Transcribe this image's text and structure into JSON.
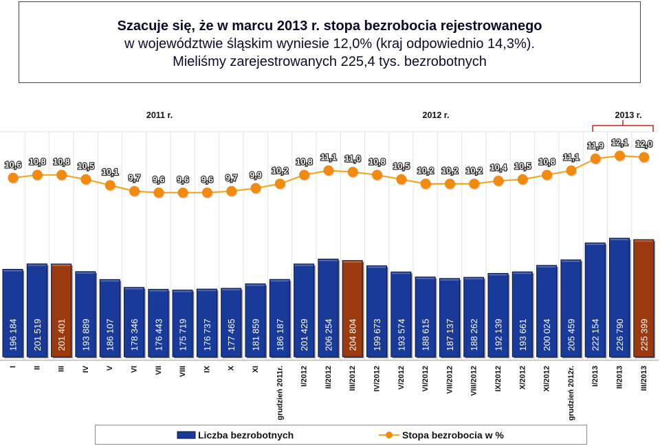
{
  "title": {
    "line1": "Szacuje się, że w marcu 2013 r. stopa bezrobocia rejestrowanego",
    "line2": "w województwie śląskim wyniesie 12,0% (kraj odpowiednio 14,3%).",
    "line3": "Mieliśmy zarejestrowanych 225,4 tys. bezrobotnych"
  },
  "year_labels": [
    "2011 r.",
    "2012 r.",
    "2013 r."
  ],
  "legend": {
    "bars_label": "Liczba bezrobotnych",
    "line_label": "Stopa bezrobocia w %"
  },
  "colors": {
    "bar": "#1a3a99",
    "bar_highlight": "#9b3a0e",
    "line": "#f5a623",
    "marker": "#f08a10",
    "bracket": "#d21e1e"
  },
  "chart_data": {
    "type": "bar",
    "categories": [
      "I",
      "II",
      "III",
      "IV",
      "V",
      "VI",
      "VII",
      "VIII",
      "IX",
      "X",
      "XI",
      "grudzień 2011r.",
      "I/2012",
      "II/2012",
      "III/2012",
      "IV/2012",
      "V/2012",
      "VI/2012",
      "VII/2012",
      "VIII/2012",
      "IX/2012",
      "X/2012",
      "XI/2012",
      "grudzień 2012r.",
      "I/2013",
      "II/2013",
      "III/2013"
    ],
    "series": [
      {
        "name": "Liczba bezrobotnych",
        "type": "bar",
        "values": [
          196184,
          201519,
          201401,
          193889,
          186107,
          178346,
          176443,
          175719,
          176737,
          177465,
          181859,
          186187,
          201429,
          206254,
          204804,
          199673,
          193574,
          188615,
          187137,
          188262,
          192139,
          193661,
          200024,
          205459,
          222154,
          226790,
          225399
        ],
        "labels": [
          "196 184",
          "201 519",
          "201 401",
          "193 889",
          "186 107",
          "178 346",
          "176 443",
          "175 719",
          "176 737",
          "177 465",
          "181 859",
          "186 187",
          "201 429",
          "206 254",
          "204 804",
          "199 673",
          "193 574",
          "188 615",
          "187 137",
          "188 262",
          "192 139",
          "193 661",
          "200 024",
          "205 459",
          "222 154",
          "226 790",
          "225 399"
        ],
        "highlight_indices": [
          2,
          14,
          26
        ]
      },
      {
        "name": "Stopa bezrobocia w %",
        "type": "line",
        "values": [
          10.6,
          10.8,
          10.8,
          10.5,
          10.1,
          9.7,
          9.6,
          9.6,
          9.6,
          9.7,
          9.9,
          10.2,
          10.8,
          11.1,
          11.0,
          10.8,
          10.5,
          10.2,
          10.2,
          10.2,
          10.4,
          10.5,
          10.8,
          11.1,
          11.9,
          12.1,
          12.0
        ],
        "labels": [
          "10,6",
          "10,8",
          "10,8",
          "10,5",
          "10,1",
          "9,7",
          "9,6",
          "9,6",
          "9,6",
          "9,7",
          "9,9",
          "10,2",
          "10,8",
          "11,1",
          "11,0",
          "10,8",
          "10,5",
          "10,2",
          "10,2",
          "10,2",
          "10,4",
          "10,5",
          "10,8",
          "11,1",
          "11,9",
          "12,1",
          "12,0"
        ]
      }
    ],
    "grid": false,
    "legend_position": "bottom"
  }
}
